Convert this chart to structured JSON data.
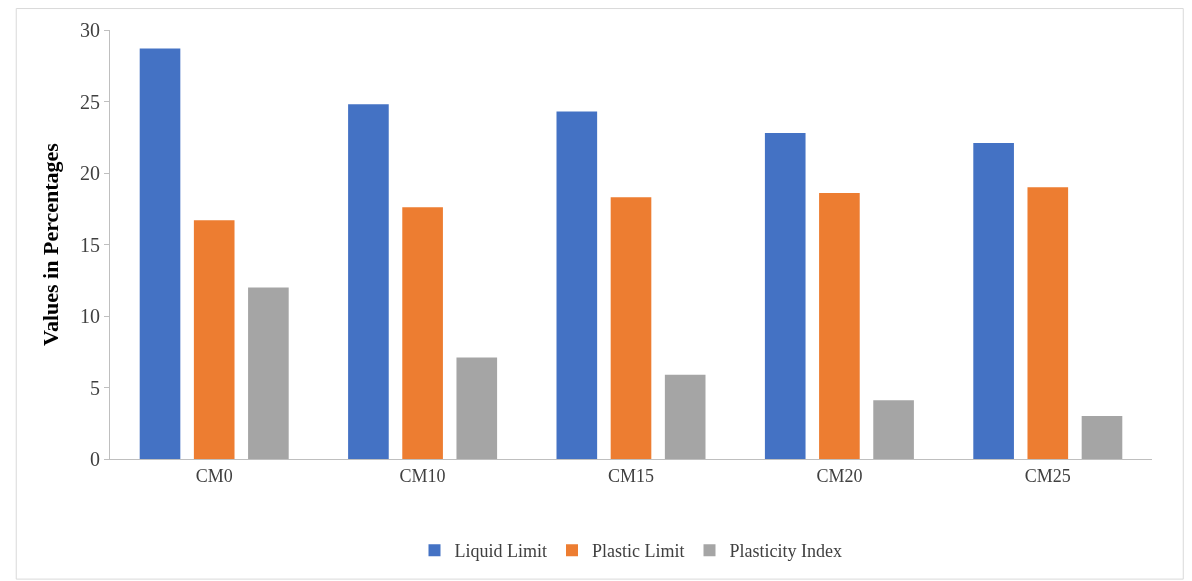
{
  "chart_data": {
    "type": "bar",
    "ylabel": "Values in Percentages",
    "categories": [
      "CM0",
      "CM10",
      "CM15",
      "CM20",
      "CM25"
    ],
    "series": [
      {
        "name": "Liquid Limit",
        "color": "#4472c4",
        "values": [
          28.7,
          24.8,
          24.3,
          22.8,
          22.1
        ]
      },
      {
        "name": "Plastic Limit",
        "color": "#ed7d31",
        "values": [
          16.7,
          17.6,
          18.3,
          18.6,
          19.0
        ]
      },
      {
        "name": "Plasticity Index",
        "color": "#a5a5a5",
        "values": [
          12.0,
          7.1,
          5.9,
          4.1,
          3.0
        ]
      }
    ],
    "ylim": [
      0,
      30
    ],
    "yticks": [
      0,
      5,
      10,
      15,
      20,
      25,
      30
    ],
    "legend": "bottom"
  }
}
